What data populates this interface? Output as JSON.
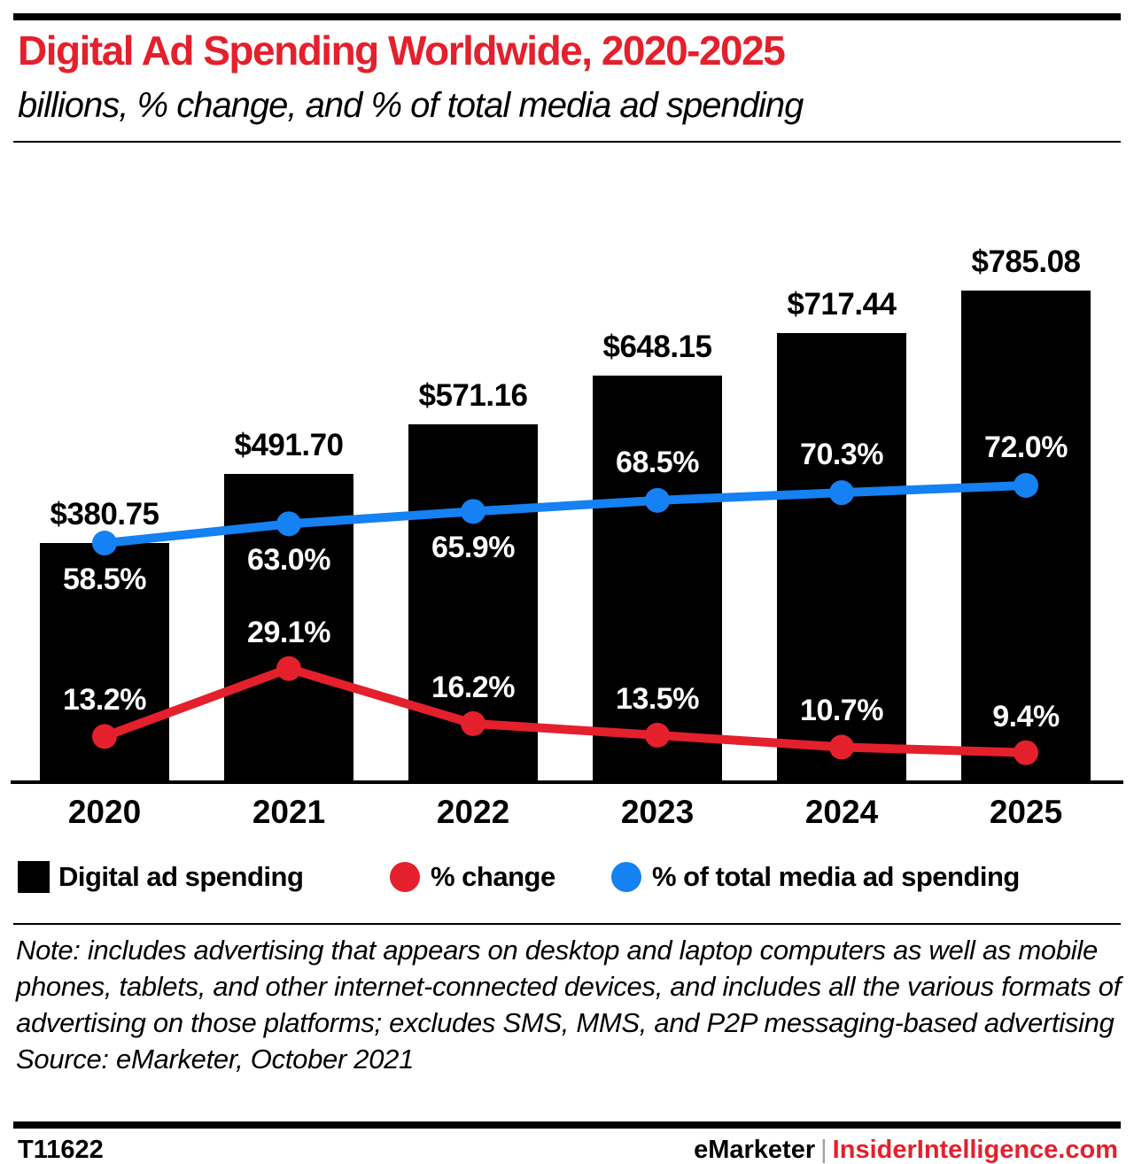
{
  "header": {
    "title": "Digital Ad Spending Worldwide, 2020-2025",
    "subtitle": "billions, % change, and % of total media ad spending"
  },
  "chart_data": {
    "type": "bar+line combo",
    "title": "Digital Ad Spending Worldwide, 2020-2025",
    "subtitle": "billions, % change, and % of total media ad spending",
    "categories": [
      "2020",
      "2021",
      "2022",
      "2023",
      "2024",
      "2025"
    ],
    "series": [
      {
        "name": "Digital ad spending",
        "type": "bar",
        "color": "#000000",
        "unit": "billions USD",
        "values": [
          380.75,
          491.7,
          571.16,
          648.15,
          717.44,
          785.08
        ],
        "labels": [
          "$380.75",
          "$491.70",
          "$571.16",
          "$648.15",
          "$717.44",
          "$785.08"
        ]
      },
      {
        "name": "% change",
        "type": "line",
        "color": "#e4202c",
        "unit": "%",
        "values": [
          13.2,
          29.1,
          16.2,
          13.5,
          10.7,
          9.4
        ],
        "labels": [
          "13.2%",
          "29.1%",
          "16.2%",
          "13.5%",
          "10.7%",
          "9.4%"
        ]
      },
      {
        "name": "% of total media ad spending",
        "type": "line",
        "color": "#1581f3",
        "unit": "%",
        "values": [
          58.5,
          63.0,
          65.9,
          68.5,
          70.3,
          72.0
        ],
        "labels": [
          "58.5%",
          "63.0%",
          "65.9%",
          "68.5%",
          "70.3%",
          "72.0%"
        ]
      }
    ],
    "ylim_bars": [
      0,
      785.08
    ],
    "ylim_pct": [
      0,
      100
    ],
    "grid": false,
    "legend_position": "bottom"
  },
  "notes": {
    "note": "Note: includes advertising that appears on desktop and laptop computers as well as mobile phones, tablets, and other internet-connected devices, and includes all the various formats of advertising on those platforms; excludes SMS, MMS, and P2P messaging-based advertising",
    "source": "Source: eMarketer, October 2021"
  },
  "footer": {
    "id": "T11622",
    "brand": "eMarketer",
    "separator": "|",
    "domain": "InsiderIntelligence.com"
  },
  "colors": {
    "accent_red": "#e4202c",
    "accent_blue": "#1581f3",
    "bar_black": "#000000",
    "separator_gray": "#9aa0a6"
  }
}
